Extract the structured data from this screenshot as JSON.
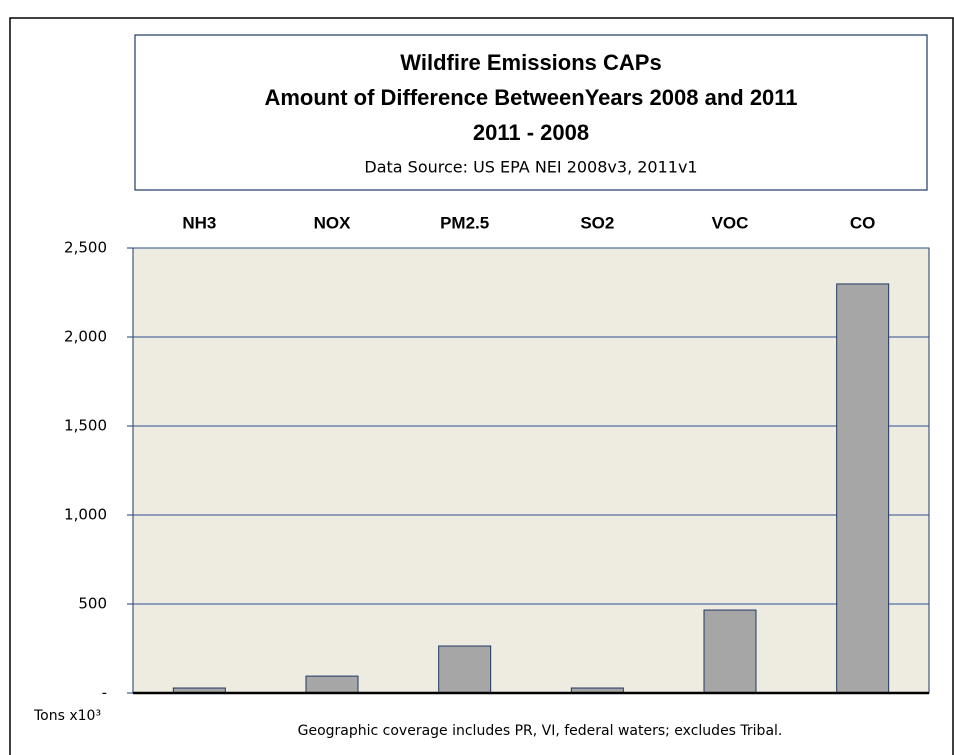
{
  "chart_data": {
    "type": "bar",
    "title": [
      "Wildfire Emissions CAPs",
      "Amount of Difference BetweenYears 2008 and 2011",
      "2011 - 2008"
    ],
    "subtitle": "Data Source: US EPA NEI 2008v3, 2011v1",
    "categories": [
      "NH3",
      "NOX",
      "PM2.5",
      "SO2",
      "VOC",
      "CO"
    ],
    "values": [
      28,
      95,
      264,
      28,
      466,
      2298
    ],
    "color": "#a6a6a6",
    "ylim": [
      0,
      2500
    ],
    "yticks": [
      {
        "value": 0,
        "label": "-"
      },
      {
        "value": 500,
        "label": "500"
      },
      {
        "value": 1000,
        "label": "1,000"
      },
      {
        "value": 1500,
        "label": "1,500"
      },
      {
        "value": 2000,
        "label": "2,000"
      },
      {
        "value": 2500,
        "label": "2,500"
      }
    ],
    "y_label": "Tons x10³",
    "note": "Geographic coverage includes PR, VI, federal waters; excludes Tribal.",
    "grid": true
  }
}
